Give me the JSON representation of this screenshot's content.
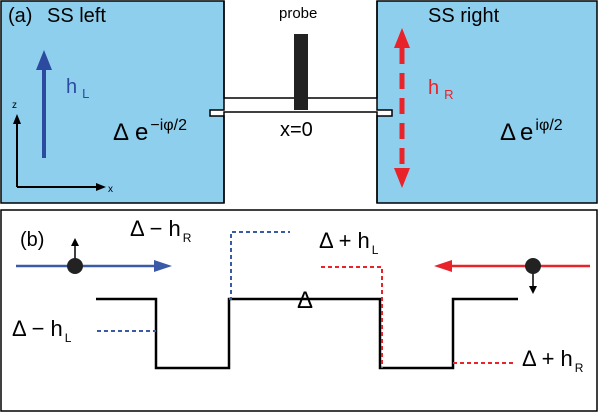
{
  "panel_a": {
    "label": "(a)",
    "left_title": "SS left",
    "right_title": "SS right",
    "probe_label": "probe",
    "position_label": "x=0",
    "left_field": {
      "symbol": "h",
      "sub": "L",
      "color": "#2b4aa0"
    },
    "right_field": {
      "symbol": "h",
      "sub": "R",
      "color": "#e8232a"
    },
    "left_gap": {
      "delta": "Δ",
      "base": "e",
      "exp": "−iφ/2"
    },
    "right_gap": {
      "delta": "Δ",
      "base": "e",
      "exp": "iφ/2"
    },
    "axis_z": "z",
    "axis_x": "x",
    "colors": {
      "superconductor_fill": "#8ecfee",
      "probe": "#222222"
    }
  },
  "panel_b": {
    "label": "(b)",
    "delta_center": "Δ",
    "delta_minus_hR": {
      "main": "Δ − h",
      "sub": "R"
    },
    "delta_plus_hL": {
      "main": "Δ + h",
      "sub": "L"
    },
    "delta_minus_hL": {
      "main": "Δ − h",
      "sub": "L"
    },
    "delta_plus_hR": {
      "main": "Δ + h",
      "sub": "R"
    },
    "colors": {
      "blue": "#3a5aa8",
      "red": "#e8232a",
      "profile": "#000000"
    }
  }
}
